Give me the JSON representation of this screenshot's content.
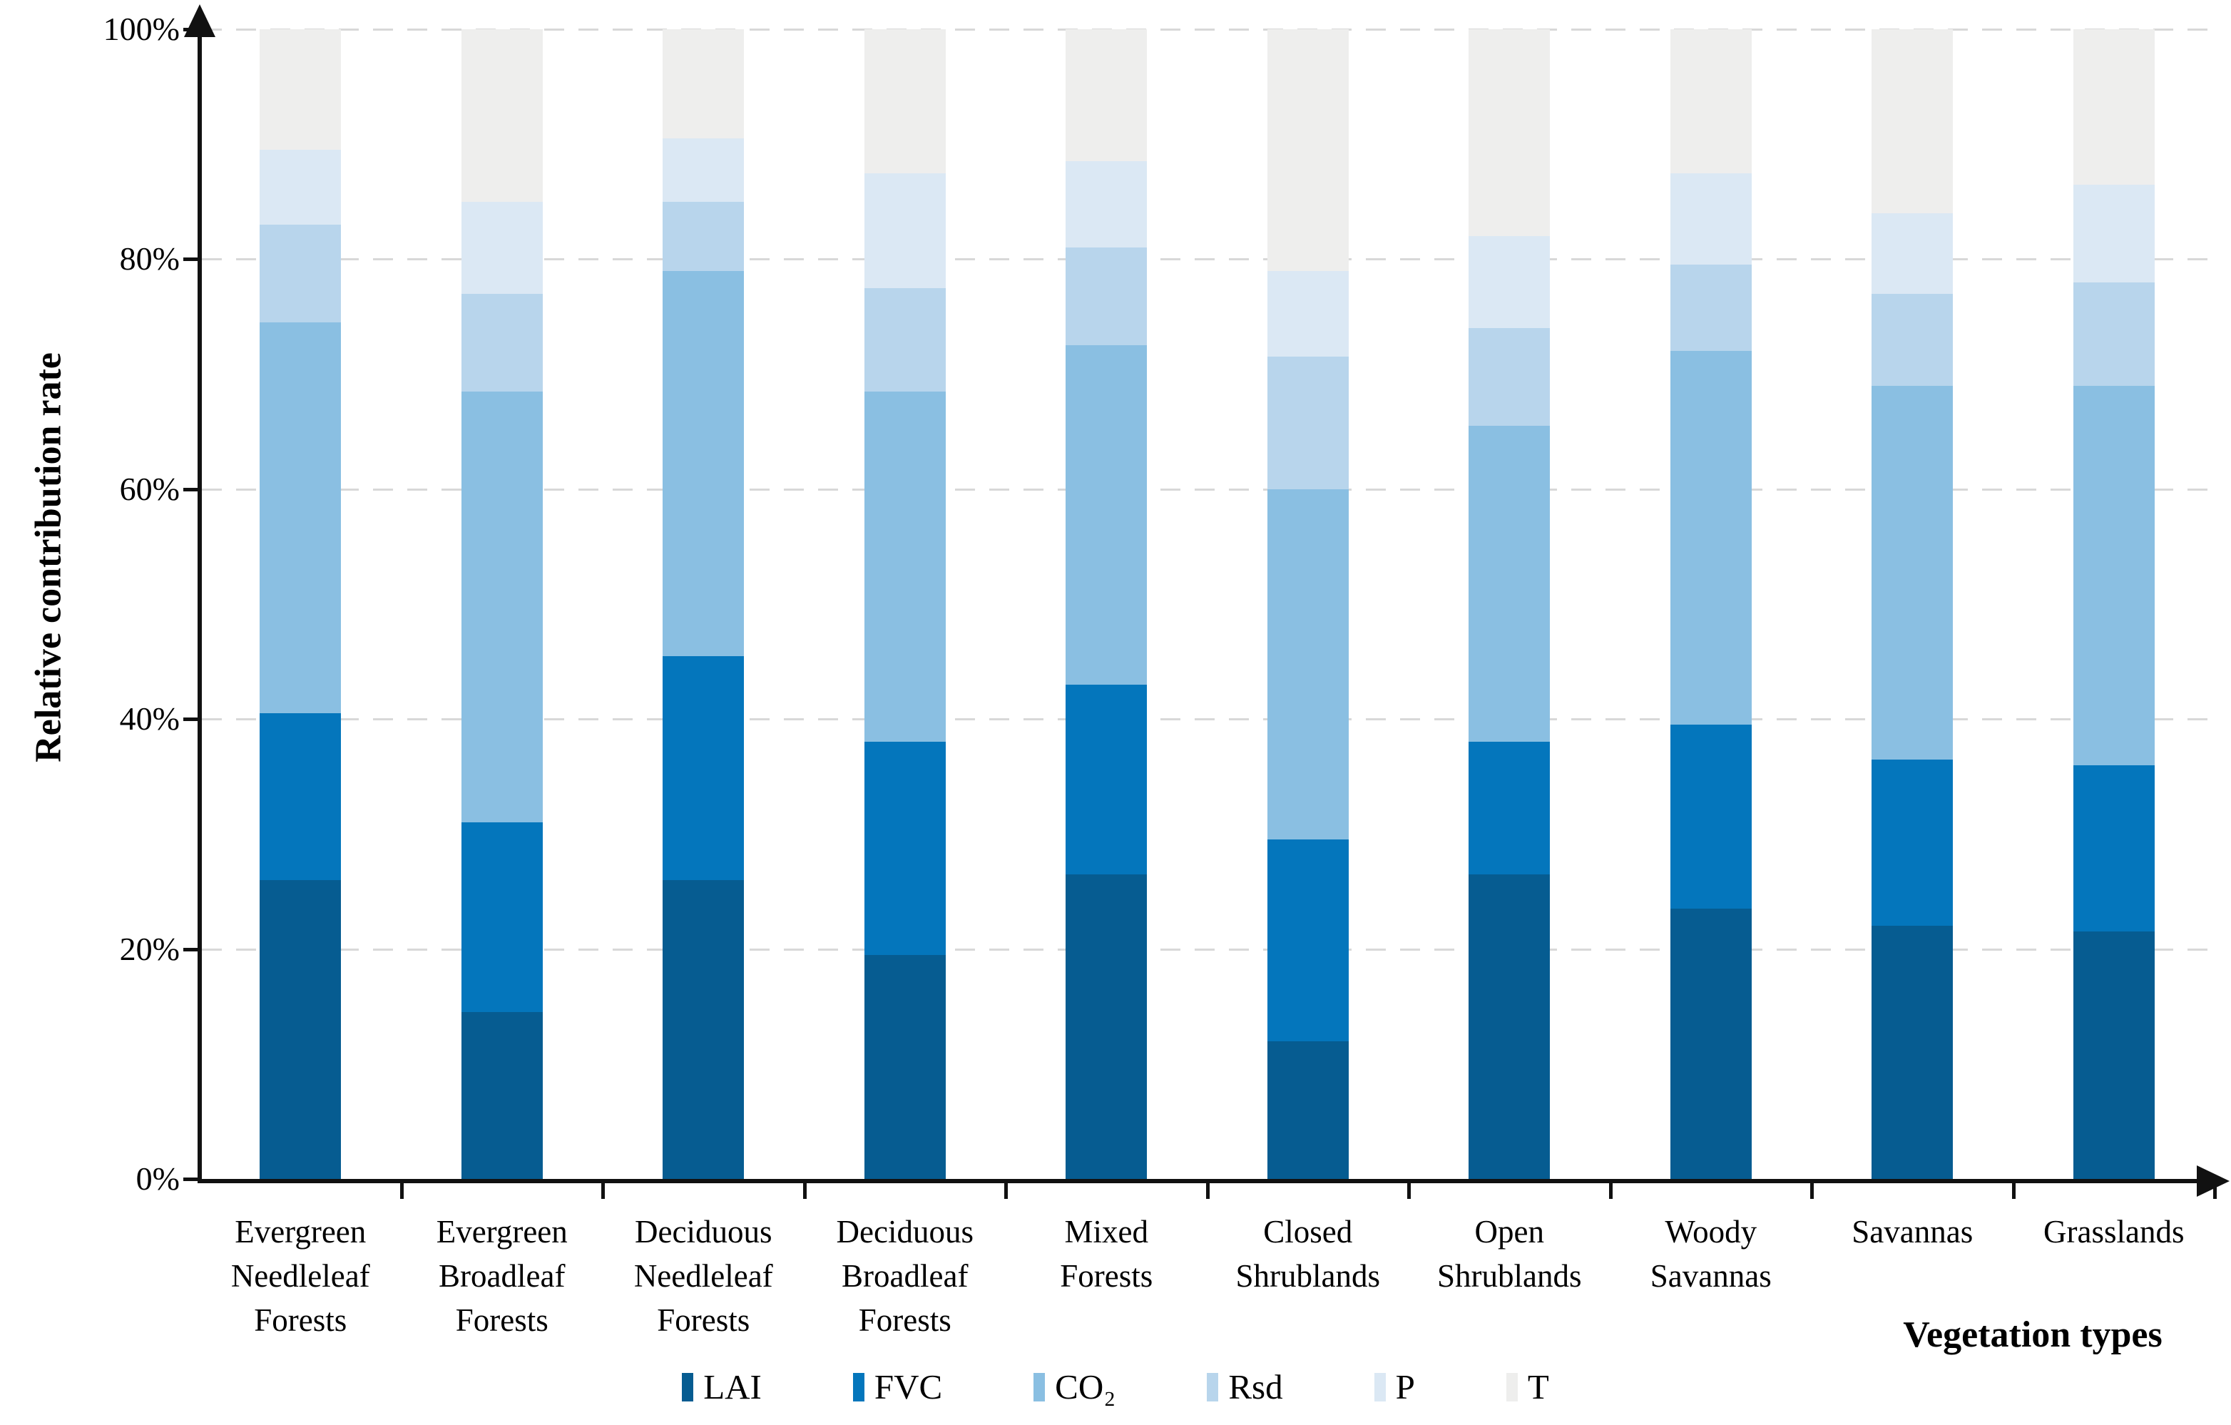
{
  "figure": {
    "y_axis_title": "Relative contribution rate",
    "x_axis_title": "Vegetation types"
  },
  "chart_data": {
    "type": "bar",
    "subtype": "stacked-100-percent",
    "orientation": "vertical",
    "title": "",
    "xlabel": "Vegetation types",
    "ylabel": "Relative contribution rate",
    "ylim": [
      0,
      100
    ],
    "y_ticks": [
      0,
      20,
      40,
      60,
      80,
      100
    ],
    "y_tick_labels": [
      "0%",
      "20%",
      "40%",
      "60%",
      "80%",
      "100%"
    ],
    "grid": "horizontal-dashed",
    "legend_position": "bottom",
    "categories": [
      "Evergreen Needleleaf Forests",
      "Evergreen Broadleaf Forests",
      "Deciduous Needleleaf Forests",
      "Deciduous Broadleaf Forests",
      "Mixed Forests",
      "Closed Shrublands",
      "Open Shrublands",
      "Woody Savannas",
      "Savannas",
      "Grasslands"
    ],
    "category_label_lines": [
      [
        "Evergreen",
        "Needleleaf",
        "Forests"
      ],
      [
        "Evergreen",
        "Broadleaf",
        "Forests"
      ],
      [
        "Deciduous",
        "Needleleaf",
        "Forests"
      ],
      [
        "Deciduous",
        "Broadleaf",
        "Forests"
      ],
      [
        "Mixed",
        "Forests"
      ],
      [
        "Closed",
        "Shrublands"
      ],
      [
        "Open",
        "Shrublands"
      ],
      [
        "Woody",
        "Savannas"
      ],
      [
        "Savannas"
      ],
      [
        "Grasslands"
      ]
    ],
    "series": [
      {
        "name": "LAI",
        "color": "#065C91",
        "values": [
          26.0,
          14.5,
          26.0,
          19.5,
          26.5,
          12.0,
          26.5,
          23.5,
          22.0,
          21.5
        ]
      },
      {
        "name": "FVC",
        "color": "#0476BC",
        "values": [
          14.5,
          16.5,
          19.5,
          18.5,
          16.5,
          17.5,
          11.5,
          16.0,
          14.5,
          14.5
        ]
      },
      {
        "name": "CO₂",
        "color": "#8ABFE2",
        "values": [
          34.0,
          37.5,
          33.5,
          30.5,
          29.5,
          30.5,
          27.5,
          32.5,
          32.5,
          33.0
        ]
      },
      {
        "name": "Rsd",
        "color": "#B8D5EC",
        "values": [
          8.5,
          8.5,
          6.0,
          9.0,
          8.5,
          11.5,
          8.5,
          7.5,
          8.0,
          9.0
        ]
      },
      {
        "name": "P",
        "color": "#DBE8F4",
        "values": [
          6.5,
          8.0,
          5.5,
          10.0,
          7.5,
          7.5,
          8.0,
          8.0,
          7.0,
          8.5
        ]
      },
      {
        "name": "T",
        "color": "#EEEEED",
        "values": [
          10.5,
          15.0,
          9.5,
          12.5,
          11.5,
          21.0,
          18.0,
          12.5,
          16.0,
          13.5
        ]
      }
    ],
    "cumulative_tops_percent": {
      "note": "running totals per category, bottom series first",
      "Evergreen Needleleaf Forests": [
        26,
        40.5,
        74.5,
        83,
        89.5,
        100
      ],
      "Evergreen Broadleaf Forests": [
        14.5,
        31,
        68.5,
        77,
        85,
        100
      ],
      "Deciduous Needleleaf Forests": [
        26,
        45.5,
        79,
        85,
        90.5,
        100
      ],
      "Deciduous Broadleaf Forests": [
        19.5,
        38,
        68.5,
        77.5,
        87.5,
        100
      ],
      "Mixed Forests": [
        26.5,
        43,
        72.5,
        81,
        88.5,
        100
      ],
      "Closed Shrublands": [
        12,
        29.5,
        60,
        71.5,
        79,
        100
      ],
      "Open Shrublands": [
        26.5,
        38,
        65.5,
        74,
        82,
        100
      ],
      "Woody Savannas": [
        23.5,
        39.5,
        72,
        79.5,
        87.5,
        100
      ],
      "Savannas": [
        22,
        36.5,
        69,
        77,
        84,
        100
      ],
      "Grasslands": [
        21.5,
        36,
        69,
        78,
        86.5,
        100
      ]
    },
    "style_colors": {
      "axis": "#111111",
      "gridline": "#d8d8d8",
      "background": "#ffffff"
    }
  }
}
